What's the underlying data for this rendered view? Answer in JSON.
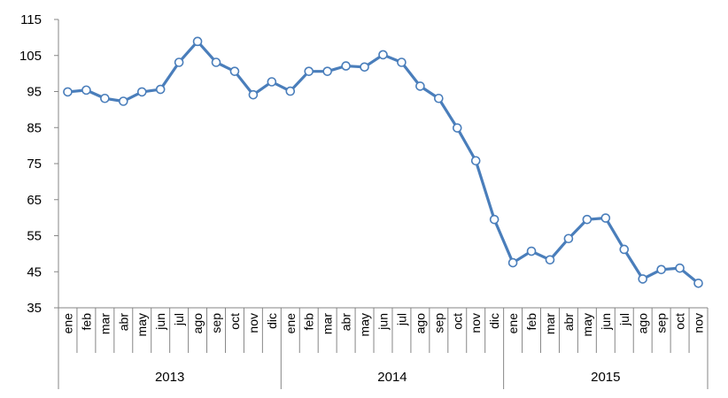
{
  "chart_data": {
    "type": "line",
    "title": "",
    "xlabel": "",
    "ylabel": "",
    "ylim": [
      35,
      115
    ],
    "yticks": [
      35,
      45,
      55,
      65,
      75,
      85,
      95,
      105,
      115
    ],
    "grid": false,
    "legend": "none",
    "colors": {
      "line": "#4a7ebb",
      "marker_fill": "#ffffff",
      "axis": "#868686"
    },
    "years": [
      {
        "label": "2013",
        "count": 12
      },
      {
        "label": "2014",
        "count": 12
      },
      {
        "label": "2015",
        "count": 11
      }
    ],
    "categories": [
      "ene",
      "feb",
      "mar",
      "abr",
      "may",
      "jun",
      "jul",
      "ago",
      "sep",
      "oct",
      "nov",
      "dic",
      "ene",
      "feb",
      "mar",
      "abr",
      "may",
      "jun",
      "jul",
      "ago",
      "sep",
      "oct",
      "nov",
      "dic",
      "ene",
      "feb",
      "mar",
      "abr",
      "may",
      "jun",
      "jul",
      "ago",
      "sep",
      "oct",
      "nov"
    ],
    "series": [
      {
        "values": [
          94.9,
          95.4,
          93.1,
          92.3,
          94.9,
          95.6,
          103.1,
          108.9,
          103.1,
          100.6,
          94.1,
          97.7,
          95.1,
          100.6,
          100.6,
          102.1,
          101.8,
          105.2,
          103.1,
          96.5,
          93.1,
          84.9,
          75.8,
          59.5,
          47.5,
          50.7,
          48.3,
          54.2,
          59.5,
          59.9,
          51.2,
          43.0,
          45.6,
          46.0,
          41.8
        ]
      }
    ]
  }
}
